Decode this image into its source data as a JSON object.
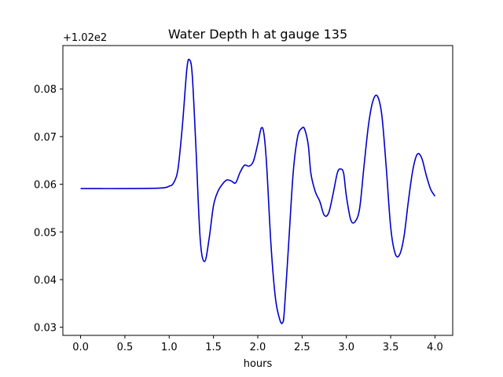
{
  "chart_data": {
    "type": "line",
    "title": "Water Depth h at gauge 135",
    "xlabel": "hours",
    "ylabel": "",
    "y_offset_label": "+1.02e2",
    "xlim": [
      -0.2,
      4.2
    ],
    "ylim": [
      0.0283,
      0.0891
    ],
    "xticks": [
      0.0,
      0.5,
      1.0,
      1.5,
      2.0,
      2.5,
      3.0,
      3.5,
      4.0
    ],
    "xtick_labels": [
      "0.0",
      "0.5",
      "1.0",
      "1.5",
      "2.0",
      "2.5",
      "3.0",
      "3.5",
      "4.0"
    ],
    "yticks": [
      0.03,
      0.04,
      0.05,
      0.06,
      0.07,
      0.08
    ],
    "ytick_labels": [
      "0.03",
      "0.04",
      "0.05",
      "0.06",
      "0.07",
      "0.08"
    ],
    "grid": false,
    "series": [
      {
        "color": "#0000cc",
        "x": [
          0.0,
          0.5,
          0.9,
          1.0,
          1.05,
          1.1,
          1.15,
          1.2,
          1.23,
          1.26,
          1.3,
          1.35,
          1.4,
          1.45,
          1.5,
          1.55,
          1.6,
          1.65,
          1.7,
          1.75,
          1.8,
          1.85,
          1.9,
          1.95,
          2.0,
          2.04,
          2.07,
          2.1,
          2.15,
          2.2,
          2.25,
          2.28,
          2.3,
          2.35,
          2.4,
          2.45,
          2.5,
          2.53,
          2.57,
          2.6,
          2.65,
          2.7,
          2.75,
          2.8,
          2.85,
          2.9,
          2.94,
          2.97,
          3.0,
          3.05,
          3.1,
          3.15,
          3.2,
          3.25,
          3.3,
          3.35,
          3.4,
          3.45,
          3.5,
          3.55,
          3.6,
          3.65,
          3.7,
          3.75,
          3.8,
          3.85,
          3.9,
          3.95,
          4.0
        ],
        "y": [
          0.0591,
          0.0591,
          0.0592,
          0.0596,
          0.0603,
          0.0633,
          0.0725,
          0.0843,
          0.0861,
          0.083,
          0.0685,
          0.0485,
          0.0438,
          0.0485,
          0.0555,
          0.0585,
          0.06,
          0.0609,
          0.0607,
          0.0603,
          0.0625,
          0.064,
          0.0638,
          0.0648,
          0.0685,
          0.0718,
          0.0705,
          0.064,
          0.047,
          0.036,
          0.0315,
          0.031,
          0.0335,
          0.048,
          0.0625,
          0.07,
          0.0718,
          0.0715,
          0.0682,
          0.0622,
          0.0584,
          0.0564,
          0.0535,
          0.054,
          0.058,
          0.0625,
          0.0632,
          0.0622,
          0.0575,
          0.0525,
          0.0522,
          0.055,
          0.064,
          0.0725,
          0.0775,
          0.0785,
          0.0745,
          0.0635,
          0.051,
          0.0455,
          0.0452,
          0.049,
          0.0565,
          0.063,
          0.0663,
          0.0655,
          0.062,
          0.059,
          0.0575
        ]
      }
    ]
  }
}
